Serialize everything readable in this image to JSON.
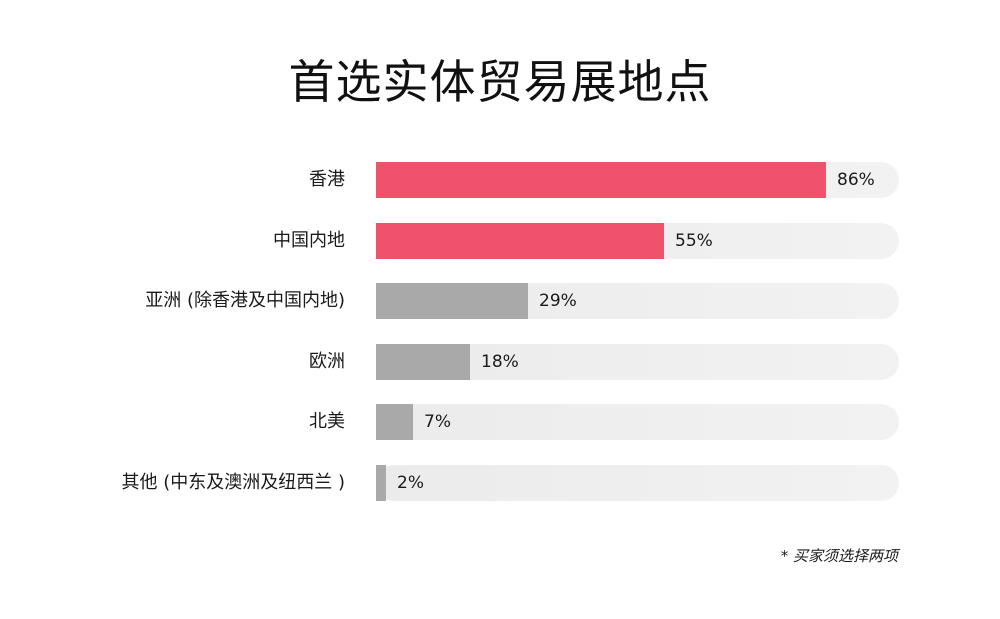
{
  "chart_data": {
    "type": "bar",
    "orientation": "horizontal",
    "title": "首选实体贸易展地点",
    "categories": [
      "香港",
      "中国内地",
      "亚洲 (除香港及中国内地)",
      "欧洲",
      "北美",
      "其他 (中东及澳洲及纽西兰 )"
    ],
    "values": [
      86,
      55,
      29,
      18,
      7,
      2
    ],
    "value_labels": [
      "86%",
      "55%",
      "29%",
      "18%",
      "7%",
      "2%"
    ],
    "unit": "%",
    "xlim": [
      0,
      100
    ],
    "grid": false,
    "colors": [
      "#f0516b",
      "#f0516b",
      "#a9a9a9",
      "#a9a9a9",
      "#a9a9a9",
      "#a9a9a9"
    ],
    "track_color": "#eeeeee",
    "note": "* 买家须选择两项"
  }
}
